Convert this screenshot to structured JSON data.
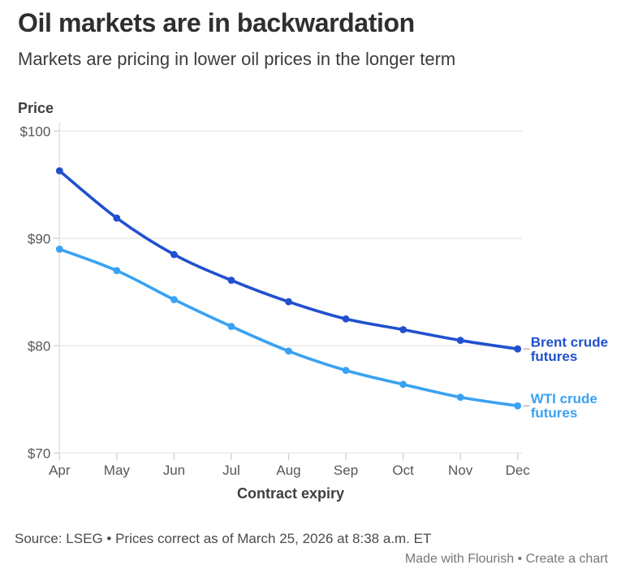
{
  "header": {
    "title": "Oil markets are in backwardation",
    "subtitle": "Markets are pricing in lower oil prices in the longer term"
  },
  "footer": {
    "source": "Source: LSEG • Prices correct as of March 25, 2026 at 8:38 a.m. ET",
    "credit": "Made with Flourish • Create a chart"
  },
  "chart_data": {
    "type": "line",
    "title": "Oil markets are in backwardation",
    "subtitle": "Markets are pricing in lower oil prices in the longer term",
    "ylabel": "Price",
    "xlabel": "Contract expiry",
    "categories": [
      "Apr",
      "May",
      "Jun",
      "Jul",
      "Aug",
      "Sep",
      "Oct",
      "Nov",
      "Dec"
    ],
    "series": [
      {
        "name": "Brent crude futures",
        "label_lines": [
          "Brent crude",
          "futures"
        ],
        "color": "#2050ce",
        "values": [
          96.3,
          91.9,
          88.5,
          86.1,
          84.1,
          82.5,
          81.5,
          80.5,
          79.7
        ]
      },
      {
        "name": "WTI crude futures",
        "label_lines": [
          "WTI crude",
          "futures"
        ],
        "color": "#3aa2f2",
        "values": [
          89.0,
          87.0,
          84.3,
          81.8,
          79.5,
          77.7,
          76.4,
          75.2,
          74.4
        ]
      }
    ],
    "yticks": [
      {
        "label": "$100",
        "value": 100
      },
      {
        "label": "$90",
        "value": 90
      },
      {
        "label": "$80",
        "value": 80
      },
      {
        "label": "$70",
        "value": 70
      }
    ],
    "ylim": [
      70,
      100
    ],
    "grid": true,
    "legend_position": "line-end-labels",
    "colors": {
      "grid": "#ebebeb",
      "axis_line": "#e4e4e4",
      "tick": "#d2d2d2",
      "axis_text": "#575757",
      "axis_title_text": "#3f3f3f",
      "connector": "#b3b3b3"
    }
  }
}
